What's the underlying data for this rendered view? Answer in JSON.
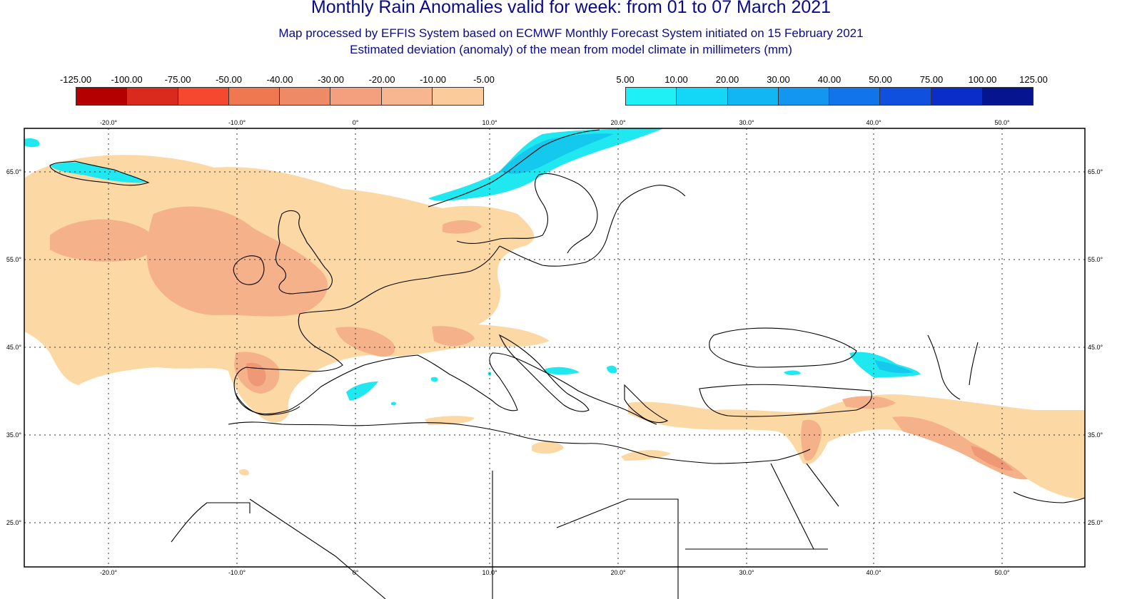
{
  "header": {
    "title": "Monthly Rain Anomalies valid for week: from 01 to 07 March 2021",
    "subtitle_1": "Map processed by EFFIS System based on ECMWF Monthly Forecast System initiated on 15 February 2021",
    "subtitle_2": "Estimated deviation (anomaly) of the mean from model climate in millimeters (mm)"
  },
  "legend_negative": {
    "labels": [
      "-125.00",
      "-100.00",
      "-75.00",
      "-50.00",
      "-40.00",
      "-30.00",
      "-20.00",
      "-10.00",
      "-5.00"
    ],
    "colors": [
      "#b40000",
      "#d92a1e",
      "#f4492f",
      "#f07850",
      "#ee8a66",
      "#f4a07e",
      "#f8b690",
      "#fbcb9c"
    ]
  },
  "legend_positive": {
    "labels": [
      "5.00",
      "10.00",
      "20.00",
      "30.00",
      "40.00",
      "50.00",
      "75.00",
      "100.00",
      "125.00"
    ],
    "colors": [
      "#1ff0f5",
      "#14d6f6",
      "#12b6f2",
      "#1296ef",
      "#1274ea",
      "#1050de",
      "#0a2cc8",
      "#061490"
    ]
  },
  "map": {
    "longitude_labels": [
      "-20.0°",
      "-10.0°",
      "0°",
      "10.0°",
      "20.0°",
      "30.0°",
      "40.0°",
      "50.0°"
    ],
    "latitude_labels": [
      "65.0°",
      "55.0°",
      "45.0°",
      "35.0°",
      "25.0°"
    ],
    "colors": {
      "dry_light": "#fbd8a4",
      "dry_medium": "#f4b18a",
      "dry_strong": "#ee9876",
      "wet_light": "#1fe8f0",
      "wet_medium": "#14c8ee",
      "coast": "#000000",
      "grid": "#333333"
    }
  }
}
